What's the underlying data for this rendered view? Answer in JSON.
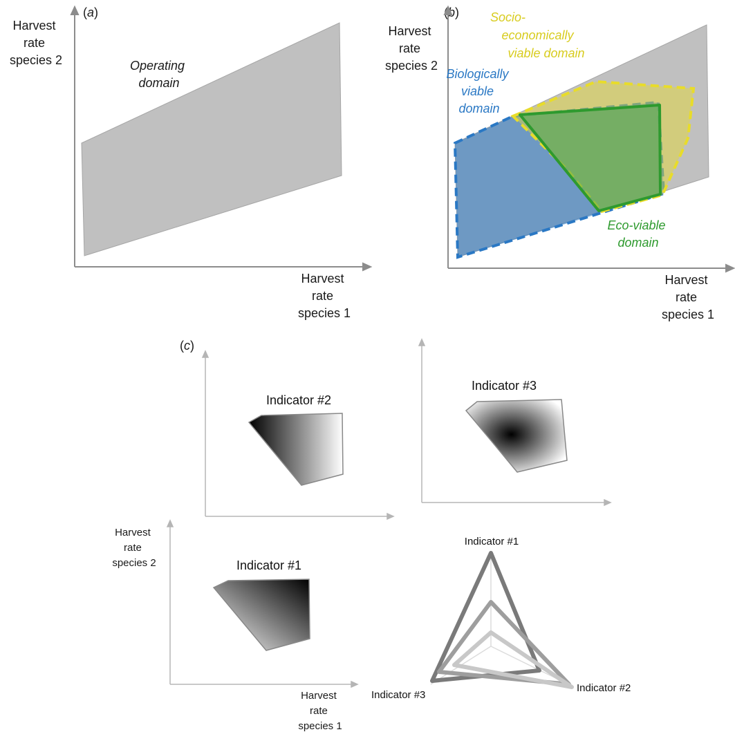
{
  "panels": {
    "a": {
      "tag_open": "(",
      "tag_letter": "a",
      "tag_close": ")",
      "ylabel": [
        "Harvest",
        "rate",
        "species 2"
      ],
      "xlabel": [
        "Harvest",
        "rate",
        "species 1"
      ],
      "region_label": [
        "Operating",
        "domain"
      ]
    },
    "b": {
      "tag_open": "(",
      "tag_letter": "b",
      "tag_close": ")",
      "ylabel": [
        "Harvest",
        "rate",
        "species 2"
      ],
      "xlabel": [
        "Harvest",
        "rate",
        "species 1"
      ],
      "bio_label": [
        "Biologically",
        "viable",
        "domain"
      ],
      "socio_label": [
        "Socio-",
        "economically",
        "viable domain"
      ],
      "eco_label": [
        "Eco-viable",
        "domain"
      ]
    },
    "c": {
      "tag_open": "(",
      "tag_letter": "c",
      "tag_close": ")",
      "ylabel": [
        "Harvest",
        "rate",
        "species 2"
      ],
      "xlabel": [
        "Harvest",
        "rate",
        "species 1"
      ],
      "indicator1": "Indicator #1",
      "indicator2": "Indicator #2",
      "indicator3": "Indicator #3",
      "radar": {
        "axis_top": "Indicator #1",
        "axis_right": "Indicator #2",
        "axis_left": "Indicator #3"
      }
    }
  },
  "colors": {
    "operating": "#c0c0c0",
    "biological": "#2a78c4",
    "socio": "#e8dc2a",
    "eco": "#2e9a2e"
  }
}
